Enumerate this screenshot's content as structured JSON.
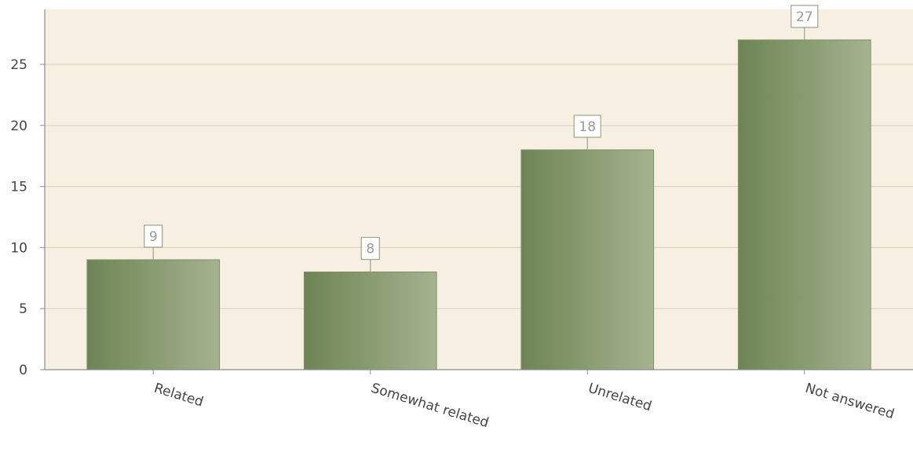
{
  "chart_data": {
    "type": "bar",
    "categories": [
      "Related",
      "Somewhat related",
      "Unrelated",
      "Not answered"
    ],
    "values": [
      9,
      8,
      18,
      27
    ],
    "title": "",
    "xlabel": "",
    "ylabel": "",
    "ylim": [
      0,
      29.5
    ],
    "yticks": [
      0,
      5,
      10,
      15,
      20,
      25
    ],
    "grid": true,
    "data_labels": true,
    "colors": {
      "plot_background": "#f7f0e2",
      "bar_dark": "#6e8455",
      "bar_light": "#a5b38e",
      "gridline": "#ddd3bf",
      "axis": "#8c8c8c"
    }
  }
}
